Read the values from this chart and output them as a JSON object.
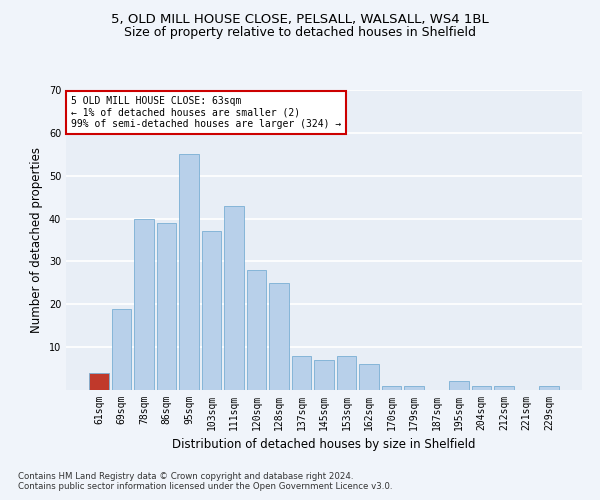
{
  "title_line1": "5, OLD MILL HOUSE CLOSE, PELSALL, WALSALL, WS4 1BL",
  "title_line2": "Size of property relative to detached houses in Shelfield",
  "xlabel": "Distribution of detached houses by size in Shelfield",
  "ylabel": "Number of detached properties",
  "categories": [
    "61sqm",
    "69sqm",
    "78sqm",
    "86sqm",
    "95sqm",
    "103sqm",
    "111sqm",
    "120sqm",
    "128sqm",
    "137sqm",
    "145sqm",
    "153sqm",
    "162sqm",
    "170sqm",
    "179sqm",
    "187sqm",
    "195sqm",
    "204sqm",
    "212sqm",
    "221sqm",
    "229sqm"
  ],
  "values": [
    4,
    19,
    40,
    39,
    55,
    37,
    43,
    28,
    25,
    8,
    7,
    8,
    6,
    1,
    1,
    0,
    2,
    1,
    1,
    0,
    1
  ],
  "bar_color": "#b8d0ea",
  "bar_edge_color": "#7aafd4",
  "highlight_bar_index": 0,
  "highlight_bar_color": "#c0392b",
  "annotation_text": "5 OLD MILL HOUSE CLOSE: 63sqm\n← 1% of detached houses are smaller (2)\n99% of semi-detached houses are larger (324) →",
  "annotation_box_color": "#ffffff",
  "annotation_box_edge_color": "#cc0000",
  "ylim": [
    0,
    70
  ],
  "yticks": [
    10,
    20,
    30,
    40,
    50,
    60,
    70
  ],
  "footnote_line1": "Contains HM Land Registry data © Crown copyright and database right 2024.",
  "footnote_line2": "Contains public sector information licensed under the Open Government Licence v3.0.",
  "bg_color": "#f0f4fa",
  "plot_bg_color": "#e8eef6",
  "grid_color": "#ffffff",
  "title_fontsize": 9.5,
  "subtitle_fontsize": 9,
  "tick_fontsize": 7,
  "ylabel_fontsize": 8.5,
  "xlabel_fontsize": 8.5,
  "footnote_fontsize": 6.2
}
